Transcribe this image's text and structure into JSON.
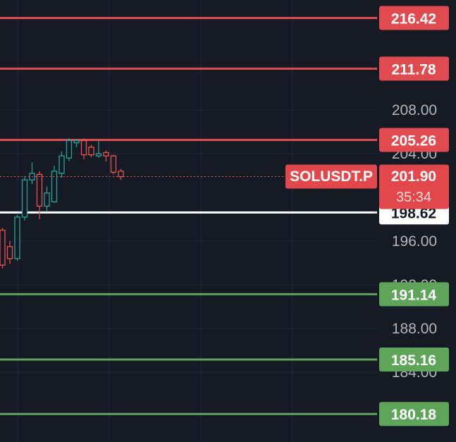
{
  "colors": {
    "background": "#161a25",
    "grid": "#232632",
    "up": "#26a69a",
    "down": "#ef5350",
    "resistance": "#e04b4f",
    "support": "#5ea55a",
    "current_line": "#ffffff",
    "axis_text": "#b2b5be"
  },
  "symbol": {
    "ticker": "SOLUSDT.P",
    "last_price": "201.90",
    "countdown": "35:34"
  },
  "chart_data": {
    "type": "candlestick",
    "title": "",
    "xlabel": "",
    "ylabel": "",
    "ylim": [
      179,
      218.5
    ],
    "grid": true,
    "y_ticks": [
      "208.00",
      "204.00",
      "196.00",
      "192.00",
      "188.00",
      "184.00"
    ],
    "last_price": 201.9,
    "candles": [
      {
        "o": 197.0,
        "h": 197.2,
        "l": 193.5,
        "c": 193.8
      },
      {
        "o": 195.5,
        "h": 196.0,
        "l": 193.9,
        "c": 194.4
      },
      {
        "o": 194.4,
        "h": 198.4,
        "l": 194.2,
        "c": 198.2
      },
      {
        "o": 198.2,
        "h": 201.9,
        "l": 197.9,
        "c": 201.6
      },
      {
        "o": 201.6,
        "h": 203.2,
        "l": 201.2,
        "c": 202.2
      },
      {
        "o": 202.1,
        "h": 202.4,
        "l": 198.0,
        "c": 199.2
      },
      {
        "o": 199.2,
        "h": 201.0,
        "l": 198.7,
        "c": 200.4
      },
      {
        "o": 199.6,
        "h": 202.9,
        "l": 199.5,
        "c": 202.4
      },
      {
        "o": 202.2,
        "h": 204.2,
        "l": 201.8,
        "c": 203.8
      },
      {
        "o": 203.6,
        "h": 205.4,
        "l": 203.3,
        "c": 205.2
      },
      {
        "o": 205.0,
        "h": 205.3,
        "l": 204.6,
        "c": 205.2
      },
      {
        "o": 205.2,
        "h": 205.4,
        "l": 203.5,
        "c": 203.9
      },
      {
        "o": 204.6,
        "h": 204.8,
        "l": 203.7,
        "c": 203.9
      },
      {
        "o": 203.8,
        "h": 205.2,
        "l": 203.6,
        "c": 204.0
      },
      {
        "o": 204.1,
        "h": 204.3,
        "l": 203.3,
        "c": 203.8
      },
      {
        "o": 203.8,
        "h": 203.9,
        "l": 202.1,
        "c": 202.3
      },
      {
        "o": 202.4,
        "h": 202.6,
        "l": 201.6,
        "c": 201.9
      }
    ],
    "levels": [
      {
        "label": "216.42",
        "kind": "resistance"
      },
      {
        "label": "211.78",
        "kind": "resistance"
      },
      {
        "label": "205.26",
        "kind": "resistance"
      },
      {
        "label": "198.62",
        "kind": "current"
      },
      {
        "label": "191.14",
        "kind": "support"
      },
      {
        "label": "185.16",
        "kind": "support"
      },
      {
        "label": "180.18",
        "kind": "support"
      }
    ]
  }
}
